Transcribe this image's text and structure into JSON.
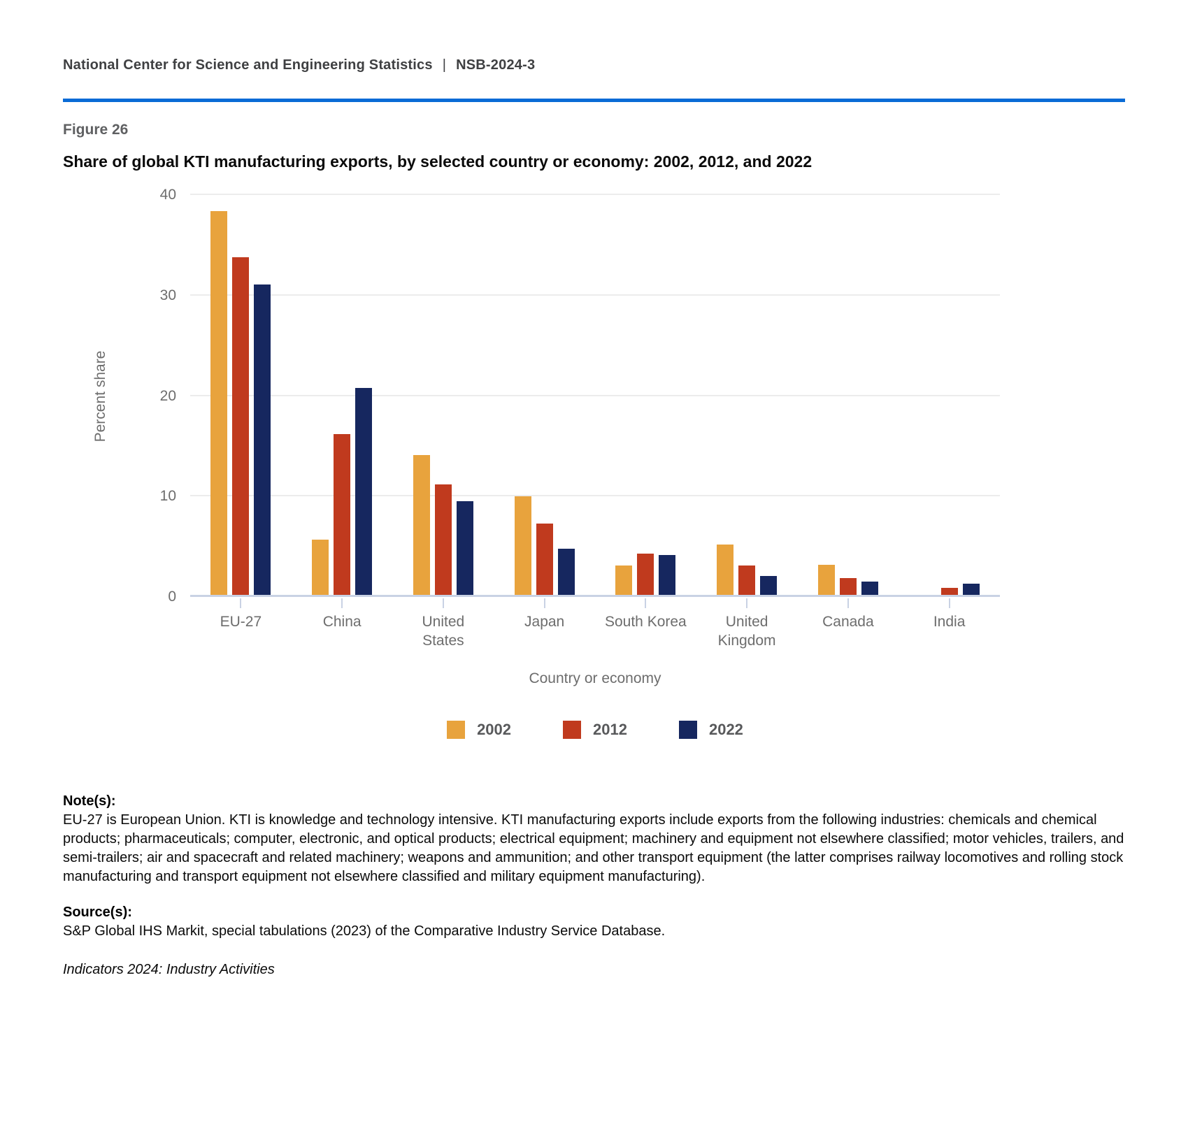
{
  "header": {
    "org": "National Center for Science and Engineering Statistics",
    "separator": "|",
    "report_id": "NSB-2024-3",
    "rule_color": "#0a6bd6"
  },
  "figure": {
    "label": "Figure 26",
    "title": "Share of global KTI manufacturing exports, by selected country or economy: 2002, 2012, and 2022"
  },
  "chart_data": {
    "type": "bar",
    "title": "Share of global KTI manufacturing exports, by selected country or economy: 2002, 2012, and 2022",
    "categories": [
      "EU-27",
      "China",
      "United States",
      "Japan",
      "South Korea",
      "United Kingdom",
      "Canada",
      "India"
    ],
    "series": [
      {
        "name": "2002",
        "color": "#e8a33d",
        "values": [
          38.4,
          5.7,
          14.1,
          10.0,
          3.1,
          5.2,
          3.2,
          0.2
        ]
      },
      {
        "name": "2012",
        "color": "#c03a1e",
        "values": [
          33.8,
          16.2,
          11.2,
          7.3,
          4.3,
          3.1,
          1.9,
          0.9
        ]
      },
      {
        "name": "2022",
        "color": "#16275f",
        "values": [
          31.1,
          20.8,
          9.5,
          4.8,
          4.2,
          2.1,
          1.5,
          1.3
        ]
      }
    ],
    "xlabel": "Country or economy",
    "ylabel": "Percent share",
    "ylim": [
      0,
      40
    ],
    "yticks": [
      0,
      10,
      20,
      30,
      40
    ],
    "grid": true,
    "legend_position": "bottom"
  },
  "notes": {
    "heading": "Note(s):",
    "body": "EU-27 is European Union. KTI is knowledge and technology intensive. KTI manufacturing exports include exports from the following industries: chemicals and chemical products; pharmaceuticals; computer, electronic, and optical products; electrical equipment; machinery and equipment not elsewhere classified; motor vehicles, trailers, and semi-trailers; air and spacecraft and related machinery; weapons and ammunition; and other transport equipment (the latter comprises railway locomotives and rolling stock manufacturing and transport equipment not elsewhere classified and military equipment manufacturing)."
  },
  "sources": {
    "heading": "Source(s):",
    "body": "S&P Global IHS Markit, special tabulations (2023) of the Comparative Industry Service Database."
  },
  "footer": {
    "text": "Indicators 2024: Industry Activities"
  }
}
